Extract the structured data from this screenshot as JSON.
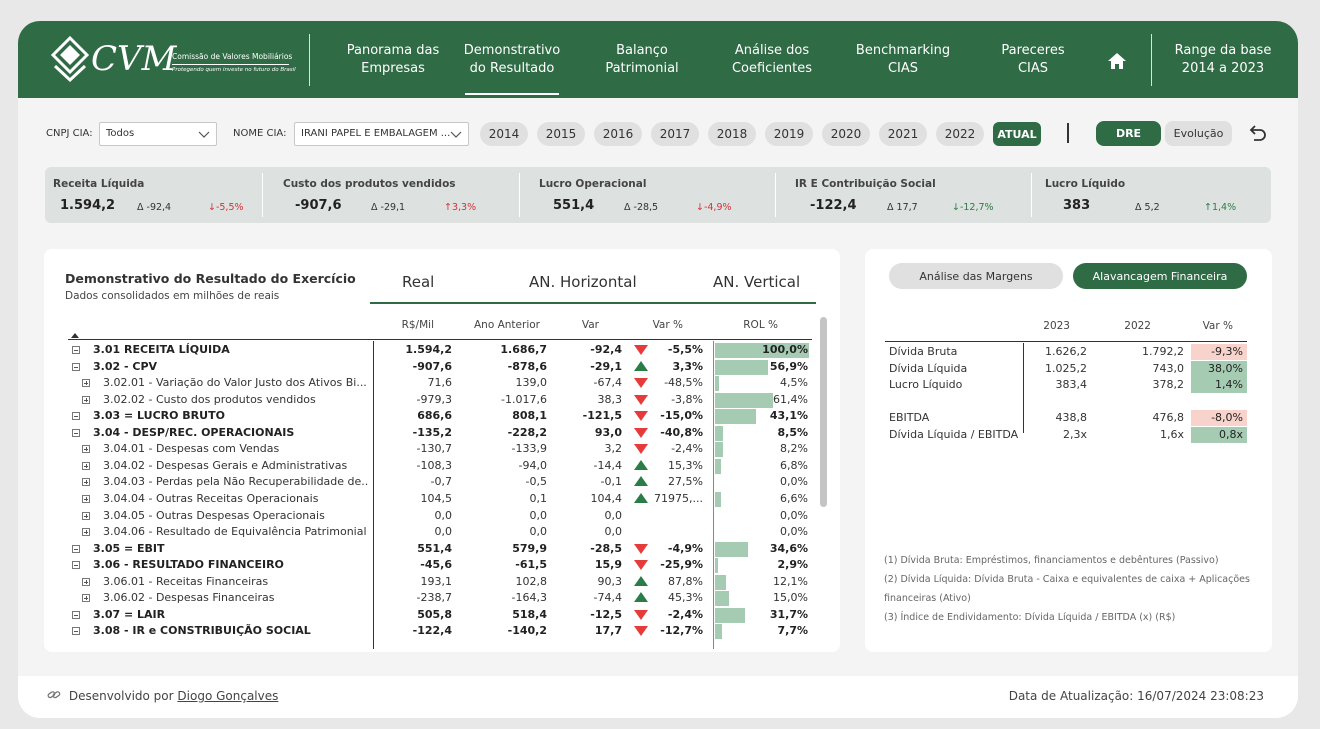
{
  "header": {
    "logo": {
      "brand": "CVM",
      "line1": "Comissão de Valores Mobiliários",
      "line2": "Protegendo quem investe no futuro do Brasil"
    },
    "nav": [
      {
        "line1": "Panorama das",
        "line2": "Empresas"
      },
      {
        "line1": "Demonstrativo",
        "line2": "do Resultado"
      },
      {
        "line1": "Balanço",
        "line2": "Patrimonial"
      },
      {
        "line1": "Análise dos",
        "line2": "Coeficientes"
      },
      {
        "line1": "Benchmarking",
        "line2": "CIAS"
      },
      {
        "line1": "Pareceres",
        "line2": "CIAS"
      }
    ],
    "range": {
      "line1": "Range da base",
      "line2": "2014 a 2023"
    }
  },
  "filters": {
    "cnpj_label": "CNPJ CIA:",
    "cnpj_value": "Todos",
    "nome_label": "NOME CIA:",
    "nome_value": "IRANI PAPEL E EMBALAGEM ...",
    "years": [
      "2014",
      "2015",
      "2016",
      "2017",
      "2018",
      "2019",
      "2020",
      "2021",
      "2022",
      "ATUAL"
    ],
    "view_dre": "DRE",
    "view_evolucao": "Evolução"
  },
  "kpis": [
    {
      "title": "Receita Líquida",
      "value": "1.594,2",
      "delta": "Δ -92,4",
      "pct": "↓-5,5%",
      "color": "#d13438"
    },
    {
      "title": "Custo dos produtos vendidos",
      "value": "-907,6",
      "delta": "Δ -29,1",
      "pct": "↑3,3%",
      "color": "#d13438"
    },
    {
      "title": "Lucro Operacional",
      "value": "551,4",
      "delta": "Δ -28,5",
      "pct": "↓-4,9%",
      "color": "#d13438"
    },
    {
      "title": "IR E Contribuição Social",
      "value": "-122,4",
      "delta": "Δ 17,7",
      "pct": "↓-12,7%",
      "color": "#2a7d47"
    },
    {
      "title": "Lucro Líquido",
      "value": "383",
      "delta": "Δ 5,2",
      "pct": "↑1,4%",
      "color": "#2a7d47"
    }
  ],
  "dre": {
    "title": "Demonstrativo do Resultado do Exercício",
    "subtitle": "Dados consolidados em milhões de reais",
    "groups": [
      "Real",
      "AN. Horizontal",
      "AN. Vertical"
    ],
    "columns": [
      "R$/Mil",
      "Ano Anterior",
      "Var",
      "Var %",
      "ROL %"
    ],
    "rows": [
      {
        "label": "3.01 RECEITA LÍQUIDA",
        "bold": true,
        "level": 0,
        "expand": "minus",
        "rs": "1.594,2",
        "ant": "1.686,7",
        "var": "-92,4",
        "dir": "down",
        "varp": "-5,5%",
        "rol": "100,0%",
        "rolv": 100.0
      },
      {
        "label": "3.02 - CPV",
        "bold": true,
        "level": 0,
        "expand": "minus",
        "rs": "-907,6",
        "ant": "-878,6",
        "var": "-29,1",
        "dir": "up",
        "varp": "3,3%",
        "rol": "56,9%",
        "rolv": 56.9
      },
      {
        "label": "3.02.01 - Variação do Valor Justo dos Ativos Bi...",
        "bold": false,
        "level": 1,
        "expand": "plus",
        "rs": "71,6",
        "ant": "139,0",
        "var": "-67,4",
        "dir": "down",
        "varp": "-48,5%",
        "rol": "4,5%",
        "rolv": 4.5
      },
      {
        "label": "3.02.02 - Custo dos produtos vendidos",
        "bold": false,
        "level": 1,
        "expand": "plus",
        "rs": "-979,3",
        "ant": "-1.017,6",
        "var": "38,3",
        "dir": "down",
        "varp": "-3,8%",
        "rol": "61,4%",
        "rolv": 61.4
      },
      {
        "label": "3.03 = LUCRO BRUTO",
        "bold": true,
        "level": 0,
        "expand": "minus",
        "rs": "686,6",
        "ant": "808,1",
        "var": "-121,5",
        "dir": "down",
        "varp": "-15,0%",
        "rol": "43,1%",
        "rolv": 43.1
      },
      {
        "label": "3.04 - DESP/REC. OPERACIONAIS",
        "bold": true,
        "level": 0,
        "expand": "minus",
        "rs": "-135,2",
        "ant": "-228,2",
        "var": "93,0",
        "dir": "down",
        "varp": "-40,8%",
        "rol": "8,5%",
        "rolv": 8.5
      },
      {
        "label": "3.04.01 - Despesas com Vendas",
        "bold": false,
        "level": 1,
        "expand": "plus",
        "rs": "-130,7",
        "ant": "-133,9",
        "var": "3,2",
        "dir": "down",
        "varp": "-2,4%",
        "rol": "8,2%",
        "rolv": 8.2
      },
      {
        "label": "3.04.02 - Despesas Gerais e Administrativas",
        "bold": false,
        "level": 1,
        "expand": "plus",
        "rs": "-108,3",
        "ant": "-94,0",
        "var": "-14,4",
        "dir": "up",
        "varp": "15,3%",
        "rol": "6,8%",
        "rolv": 6.8
      },
      {
        "label": "3.04.03 - Perdas pela Não Recuperabilidade de...",
        "bold": false,
        "level": 1,
        "expand": "plus",
        "rs": "-0,7",
        "ant": "-0,5",
        "var": "-0,1",
        "dir": "up",
        "varp": "27,5%",
        "rol": "0,0%",
        "rolv": 0.0
      },
      {
        "label": "3.04.04 - Outras Receitas Operacionais",
        "bold": false,
        "level": 1,
        "expand": "plus",
        "rs": "104,5",
        "ant": "0,1",
        "var": "104,4",
        "dir": "up",
        "varp": "71975,...",
        "rol": "6,6%",
        "rolv": 6.6
      },
      {
        "label": "3.04.05 - Outras Despesas Operacionais",
        "bold": false,
        "level": 1,
        "expand": "plus",
        "rs": "0,0",
        "ant": "0,0",
        "var": "0,0",
        "dir": "",
        "varp": "",
        "rol": "0,0%",
        "rolv": 0.0
      },
      {
        "label": "3.04.06 - Resultado de Equivalência Patrimonial",
        "bold": false,
        "level": 1,
        "expand": "plus",
        "rs": "0,0",
        "ant": "0,0",
        "var": "0,0",
        "dir": "",
        "varp": "",
        "rol": "0,0%",
        "rolv": 0.0
      },
      {
        "label": "3.05 = EBIT",
        "bold": true,
        "level": 0,
        "expand": "minus",
        "rs": "551,4",
        "ant": "579,9",
        "var": "-28,5",
        "dir": "down",
        "varp": "-4,9%",
        "rol": "34,6%",
        "rolv": 34.6
      },
      {
        "label": "3.06 - RESULTADO FINANCEIRO",
        "bold": true,
        "level": 0,
        "expand": "minus",
        "rs": "-45,6",
        "ant": "-61,5",
        "var": "15,9",
        "dir": "down",
        "varp": "-25,9%",
        "rol": "2,9%",
        "rolv": 2.9
      },
      {
        "label": "3.06.01 - Receitas Financeiras",
        "bold": false,
        "level": 1,
        "expand": "plus",
        "rs": "193,1",
        "ant": "102,8",
        "var": "90,3",
        "dir": "up",
        "varp": "87,8%",
        "rol": "12,1%",
        "rolv": 12.1
      },
      {
        "label": "3.06.02 - Despesas Financeiras",
        "bold": false,
        "level": 1,
        "expand": "plus",
        "rs": "-238,7",
        "ant": "-164,3",
        "var": "-74,4",
        "dir": "up",
        "varp": "45,3%",
        "rol": "15,0%",
        "rolv": 15.0
      },
      {
        "label": "3.07 = LAIR",
        "bold": true,
        "level": 0,
        "expand": "minus",
        "rs": "505,8",
        "ant": "518,4",
        "var": "-12,5",
        "dir": "down",
        "varp": "-2,4%",
        "rol": "31,7%",
        "rolv": 31.7
      },
      {
        "label": "3.08 - IR e CONSTRIBUIÇÃO SOCIAL",
        "bold": true,
        "level": 0,
        "expand": "minus",
        "rs": "-122,4",
        "ant": "-140,2",
        "var": "17,7",
        "dir": "down",
        "varp": "-12,7%",
        "rol": "7,7%",
        "rolv": 7.7
      }
    ]
  },
  "alavancagem": {
    "tab_margens": "Análise das Margens",
    "tab_alav": "Alavancagem Financeira",
    "columns": [
      "2023",
      "2022",
      "Var %"
    ],
    "rows": [
      {
        "label": "Dívida Bruta",
        "y2023": "1.626,2",
        "y2022": "1.792,2",
        "var": "-9,3%",
        "bg": "#f8d3cb"
      },
      {
        "label": "Dívida Líquida",
        "y2023": "1.025,2",
        "y2022": "743,0",
        "var": "38,0%",
        "bg": "#a6cbb3"
      },
      {
        "label": "Lucro Líquido",
        "y2023": "383,4",
        "y2022": "378,2",
        "var": "1,4%",
        "bg": "#a6cbb3"
      },
      {
        "label": "EBITDA",
        "y2023": "438,8",
        "y2022": "476,8",
        "var": "-8,0%",
        "bg": "#f8d3cb"
      },
      {
        "label": "Dívida Líquida / EBITDA",
        "y2023": "2,3x",
        "y2022": "1,6x",
        "var": "0,8x",
        "bg": "#a6cbb3"
      }
    ],
    "notes": [
      "(1) Dívida Bruta: Empréstimos, financiamentos e debêntures (Passivo)",
      "(2) Dívida Líquida: Dívida Bruta - Caixa e equivalentes de caixa + Aplicações",
      "financeiras (Ativo)",
      "(3) Índice de Endividamento: Dívida Líquida / EBITDA (x) (R$)"
    ]
  },
  "footer": {
    "dev_prefix": "Desenvolvido por",
    "dev_name": "Diogo Gonçalves",
    "update": "Data de Atualização: 16/07/2024 23:08:23"
  }
}
